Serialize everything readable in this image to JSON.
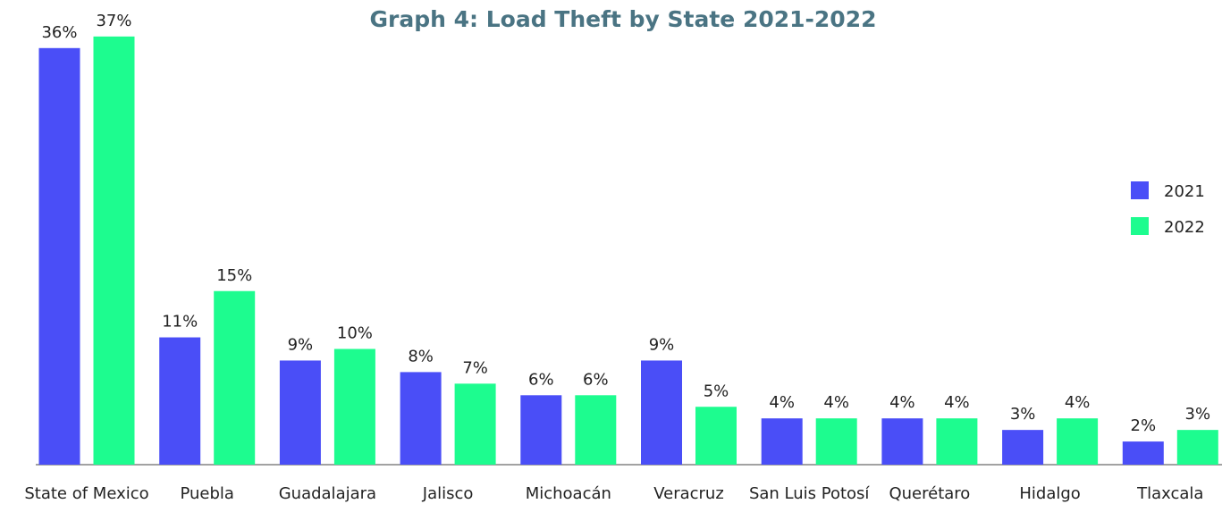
{
  "chart_data": {
    "type": "bar",
    "title": "Graph 4: Load Theft by State 2021-2022",
    "categories": [
      "State of Mexico",
      "Puebla",
      "Guadalajara",
      "Jalisco",
      "Michoacán",
      "Veracruz",
      "San Luis Potosí",
      "Querétaro",
      "Hidalgo",
      "Tlaxcala"
    ],
    "series": [
      {
        "name": "2021",
        "color": "#4a4ef7",
        "values": [
          36,
          11,
          9,
          8,
          6,
          9,
          4,
          4,
          3,
          2
        ],
        "value_labels": [
          "36%",
          "11%",
          "9%",
          "8%",
          "6%",
          "9%",
          "4%",
          "4%",
          "3%",
          "2%"
        ]
      },
      {
        "name": "2022",
        "color": "#1dfc8f",
        "values": [
          37,
          15,
          10,
          7,
          6,
          5,
          4,
          4,
          4,
          3
        ],
        "value_labels": [
          "37%",
          "15%",
          "10%",
          "7%",
          "6%",
          "5%",
          "4%",
          "4%",
          "4%",
          "3%"
        ]
      }
    ],
    "legend": "right"
  }
}
